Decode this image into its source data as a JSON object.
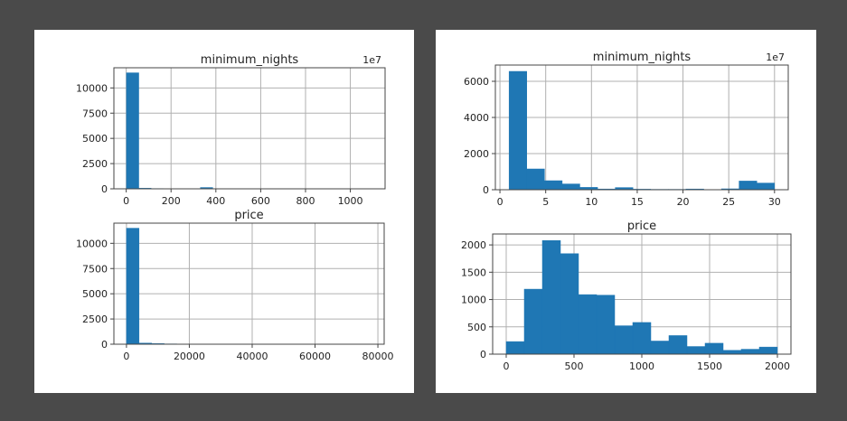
{
  "chart_data": [
    {
      "type": "bar",
      "panel": "left",
      "title": "minimum_nights",
      "offset_text": "1e7",
      "xlim": [
        -55,
        1155
      ],
      "ylim": [
        0,
        12000
      ],
      "x_ticks": [
        0,
        200,
        400,
        600,
        800,
        1000
      ],
      "y_ticks": [
        0,
        2500,
        5000,
        7500,
        10000
      ],
      "bins": [
        [
          1,
          56,
          11500
        ],
        [
          56,
          111,
          60
        ],
        [
          111,
          166,
          25
        ],
        [
          166,
          221,
          15
        ],
        [
          221,
          276,
          10
        ],
        [
          276,
          331,
          10
        ],
        [
          331,
          386,
          130
        ],
        [
          386,
          441,
          10
        ],
        [
          441,
          496,
          5
        ],
        [
          496,
          551,
          5
        ]
      ]
    },
    {
      "type": "bar",
      "panel": "left",
      "title": "price",
      "xlim": [
        -4000,
        82000
      ],
      "ylim": [
        0,
        12000
      ],
      "x_ticks": [
        0,
        20000,
        40000,
        60000,
        80000
      ],
      "y_ticks": [
        0,
        2500,
        5000,
        7500,
        10000
      ],
      "bins": [
        [
          0,
          4000,
          11500
        ],
        [
          4000,
          8000,
          110
        ],
        [
          8000,
          12000,
          60
        ],
        [
          12000,
          16000,
          30
        ],
        [
          16000,
          20000,
          10
        ]
      ]
    },
    {
      "type": "bar",
      "panel": "right",
      "title": "minimum_nights",
      "offset_text": "1e7",
      "xlim": [
        -0.5,
        31.5
      ],
      "ylim": [
        0,
        6900
      ],
      "x_ticks": [
        0,
        5,
        10,
        15,
        20,
        25,
        30
      ],
      "y_ticks": [
        0,
        2000,
        4000,
        6000
      ],
      "bins": [
        [
          1,
          2.93,
          6550
        ],
        [
          2.93,
          4.87,
          1150
        ],
        [
          4.87,
          6.8,
          500
        ],
        [
          6.8,
          8.73,
          320
        ],
        [
          8.73,
          10.67,
          130
        ],
        [
          10.67,
          12.6,
          40
        ],
        [
          12.6,
          14.53,
          120
        ],
        [
          14.53,
          16.47,
          30
        ],
        [
          16.47,
          18.4,
          20
        ],
        [
          18.4,
          20.33,
          20
        ],
        [
          20.33,
          22.27,
          40
        ],
        [
          22.27,
          24.2,
          10
        ],
        [
          24.2,
          26.13,
          50
        ],
        [
          26.13,
          28.07,
          480
        ],
        [
          28.07,
          30,
          370
        ]
      ]
    },
    {
      "type": "bar",
      "panel": "right",
      "title": "price",
      "xlim": [
        -100,
        2100
      ],
      "ylim": [
        0,
        2200
      ],
      "x_ticks": [
        0,
        500,
        1000,
        1500,
        2000
      ],
      "y_ticks": [
        0,
        500,
        1000,
        1500,
        2000
      ],
      "bins": [
        [
          0,
          133.3,
          230
        ],
        [
          133.3,
          266.7,
          1190
        ],
        [
          266.7,
          400,
          2080
        ],
        [
          400,
          533.3,
          1840
        ],
        [
          533.3,
          666.7,
          1090
        ],
        [
          666.7,
          800,
          1080
        ],
        [
          800,
          933.3,
          520
        ],
        [
          933.3,
          1066.7,
          580
        ],
        [
          1066.7,
          1200,
          240
        ],
        [
          1200,
          1333.3,
          340
        ],
        [
          1333.3,
          1466.7,
          140
        ],
        [
          1466.7,
          1600,
          200
        ],
        [
          1600,
          1733.3,
          70
        ],
        [
          1733.3,
          1866.7,
          90
        ],
        [
          1866.7,
          2000,
          130
        ]
      ]
    }
  ]
}
